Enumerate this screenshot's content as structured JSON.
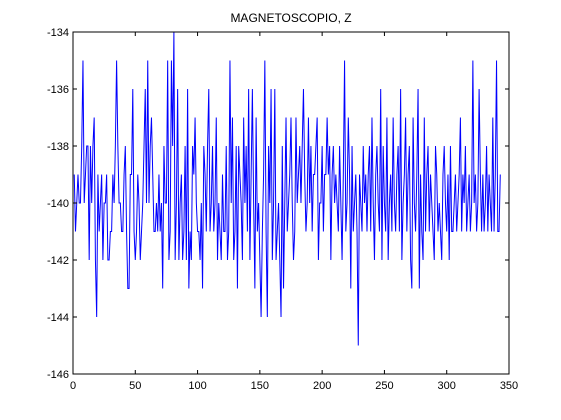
{
  "chart_data": {
    "type": "line",
    "title": "MAGNETOSCOPIO, Z",
    "xlabel": "",
    "ylabel": "",
    "xlim": [
      0,
      350
    ],
    "ylim": [
      -146,
      -134
    ],
    "xticks": [
      0,
      50,
      100,
      150,
      200,
      250,
      300,
      350
    ],
    "yticks": [
      -146,
      -144,
      -142,
      -140,
      -138,
      -136,
      -134
    ],
    "grid": false,
    "legend": "none",
    "line_color": "#0000ff",
    "series": [
      {
        "values": [
          -139,
          -141,
          -140,
          -139,
          -140,
          -140,
          -138,
          -135,
          -140,
          -139,
          -138,
          -138,
          -142,
          -138,
          -140,
          -138,
          -137,
          -142,
          -144,
          -139,
          -141,
          -140,
          -139,
          -142,
          -140,
          -140,
          -139,
          -142,
          -142,
          -141,
          -141,
          -139,
          -140,
          -138,
          -135,
          -138,
          -140,
          -140,
          -141,
          -141,
          -139,
          -138,
          -141,
          -143,
          -143,
          -139,
          -139,
          -136,
          -141,
          -142,
          -141,
          -139,
          -140,
          -142,
          -141,
          -140,
          -138,
          -136,
          -140,
          -135,
          -140,
          -138,
          -137,
          -139,
          -141,
          -141,
          -140,
          -141,
          -139,
          -141,
          -140,
          -143,
          -138,
          -140,
          -140,
          -135,
          -142,
          -141,
          -135,
          -138,
          -134,
          -142,
          -140,
          -136,
          -142,
          -140,
          -139,
          -142,
          -141,
          -138,
          -142,
          -136,
          -143,
          -141,
          -142,
          -138,
          -139,
          -137,
          -140,
          -141,
          -141,
          -142,
          -140,
          -143,
          -138,
          -139,
          -141,
          -138,
          -136,
          -141,
          -140,
          -138,
          -141,
          -140,
          -137,
          -142,
          -140,
          -141,
          -142,
          -139,
          -141,
          -141,
          -138,
          -142,
          -141,
          -135,
          -140,
          -137,
          -142,
          -141,
          -138,
          -143,
          -138,
          -139,
          -140,
          -142,
          -137,
          -140,
          -138,
          -141,
          -136,
          -142,
          -139,
          -136,
          -140,
          -143,
          -137,
          -141,
          -140,
          -142,
          -144,
          -141,
          -139,
          -135,
          -141,
          -144,
          -138,
          -140,
          -136,
          -142,
          -140,
          -136,
          -142,
          -141,
          -140,
          -142,
          -144,
          -138,
          -143,
          -140,
          -137,
          -141,
          -140,
          -139,
          -137,
          -140,
          -142,
          -141,
          -137,
          -140,
          -139,
          -138,
          -140,
          -138,
          -136,
          -139,
          -141,
          -140,
          -137,
          -140,
          -138,
          -141,
          -139,
          -139,
          -138,
          -137,
          -142,
          -140,
          -140,
          -138,
          -141,
          -139,
          -139,
          -137,
          -139,
          -138,
          -142,
          -139,
          -138,
          -140,
          -139,
          -140,
          -141,
          -138,
          -140,
          -142,
          -139,
          -135,
          -141,
          -140,
          -137,
          -139,
          -143,
          -138,
          -141,
          -140,
          -139,
          -141,
          -145,
          -139,
          -140,
          -141,
          -138,
          -140,
          -139,
          -141,
          -139,
          -138,
          -141,
          -137,
          -140,
          -142,
          -139,
          -138,
          -140,
          -141,
          -136,
          -142,
          -138,
          -140,
          -141,
          -137,
          -142,
          -140,
          -139,
          -141,
          -137,
          -140,
          -141,
          -139,
          -138,
          -141,
          -136,
          -142,
          -140,
          -139,
          -137,
          -141,
          -139,
          -138,
          -142,
          -143,
          -137,
          -140,
          -141,
          -139,
          -136,
          -143,
          -139,
          -141,
          -142,
          -137,
          -141,
          -139,
          -138,
          -141,
          -139,
          -140,
          -141,
          -142,
          -138,
          -139,
          -141,
          -140,
          -141,
          -142,
          -139,
          -138,
          -140,
          -141,
          -139,
          -142,
          -138,
          -141,
          -141,
          -140,
          -139,
          -141,
          -140,
          -139,
          -137,
          -141,
          -139,
          -140,
          -138,
          -141,
          -140,
          -139,
          -141,
          -140,
          -135,
          -140,
          -139,
          -141,
          -140,
          -136,
          -139,
          -141,
          -139,
          -141,
          -140,
          -138,
          -141,
          -139,
          -140,
          -141,
          -137,
          -141,
          -139,
          -135,
          -141,
          -141,
          -139
        ]
      }
    ]
  }
}
